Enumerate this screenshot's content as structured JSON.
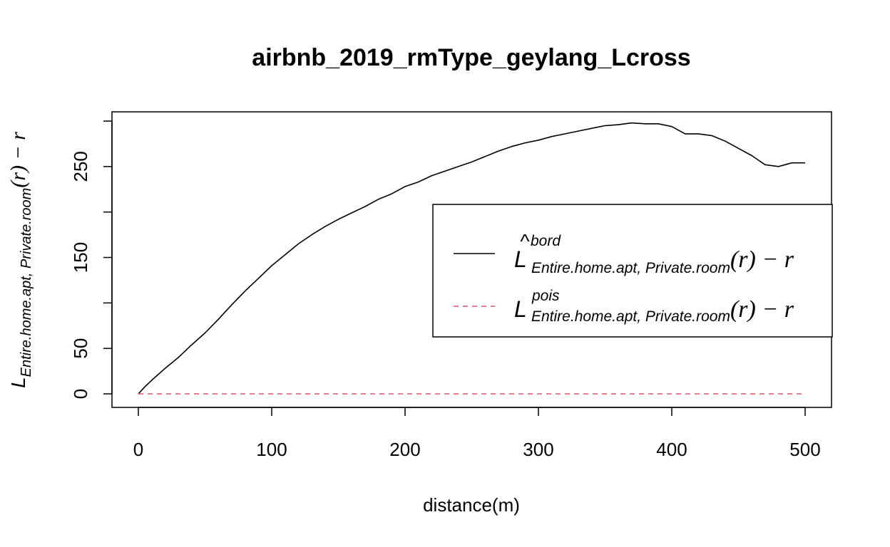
{
  "chart_data": {
    "type": "line",
    "title": "airbnb_2019_rmType_geylang_Lcross",
    "xlabel": "distance(m)",
    "ylabel": {
      "base": "L",
      "subscript": "Entire.home.apt, Private.room",
      "suffix": "(r) − r"
    },
    "xlim": [
      0,
      500
    ],
    "ylim": [
      0,
      300
    ],
    "x_ticks": [
      "0",
      "100",
      "200",
      "300",
      "400",
      "500"
    ],
    "y_ticks": [
      "0",
      "50",
      "150",
      "250"
    ],
    "grid": false,
    "legend_position": "right",
    "legend": [
      {
        "base": "L",
        "hat": "^",
        "superscript": "bord",
        "subscript": "Entire.home.apt, Private.room",
        "suffix": "(r) − r",
        "style": "solid",
        "color": "#000000"
      },
      {
        "base": "L",
        "hat": "",
        "superscript": "pois",
        "subscript": "Entire.home.apt, Private.room",
        "suffix": "(r) − r",
        "style": "dashed",
        "color": "#DF536B"
      }
    ],
    "series": [
      {
        "key": "bord",
        "color": "#000000",
        "style": "solid",
        "x": [
          0,
          5,
          10,
          20,
          30,
          40,
          50,
          60,
          70,
          80,
          90,
          100,
          110,
          120,
          130,
          140,
          150,
          160,
          170,
          180,
          190,
          200,
          210,
          220,
          230,
          240,
          250,
          260,
          270,
          280,
          290,
          300,
          310,
          320,
          330,
          340,
          350,
          360,
          370,
          380,
          390,
          400,
          410,
          420,
          430,
          440,
          450,
          460,
          470,
          480,
          490,
          500
        ],
        "y": [
          0,
          8,
          15,
          28,
          40,
          54,
          67,
          82,
          98,
          113,
          127,
          141,
          153,
          165,
          175,
          184,
          192,
          199,
          206,
          214,
          220,
          228,
          233,
          240,
          245,
          250,
          255,
          261,
          267,
          272,
          276,
          279,
          283,
          286,
          289,
          292,
          295,
          296,
          298,
          297,
          297,
          294,
          286,
          286,
          284,
          278,
          270,
          262,
          252,
          250,
          254,
          254
        ]
      },
      {
        "key": "pois",
        "color": "#DF536B",
        "style": "dashed",
        "x": [
          0,
          500
        ],
        "y": [
          0,
          0
        ]
      }
    ]
  }
}
